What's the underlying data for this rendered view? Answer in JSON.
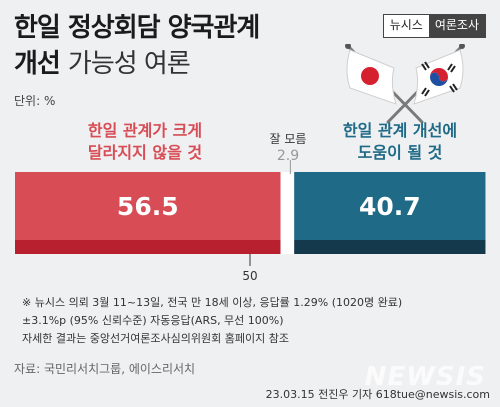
{
  "title": {
    "line1": "한일 정상회담 양국관계",
    "line2_bold": "개선",
    "line2_light": "가능성 여론"
  },
  "badge": {
    "part1": "뉴시스",
    "part2": "여론조사"
  },
  "unit_label": "단위: %",
  "colors": {
    "red": "#d84c55",
    "red_dark": "#b8202f",
    "blue": "#1f6a86",
    "blue_dark": "#14394d"
  },
  "chart_data": {
    "type": "bar",
    "orientation": "horizontal-stacked",
    "categories": [
      "한일 관계가 크게 달라지지 않을 것",
      "잘 모름",
      "한일 관계 개선에 도움이 될 것"
    ],
    "category_lines": {
      "left": [
        "한일 관계가 크게",
        "달라지지 않을 것"
      ],
      "mid": [
        "잘 모름"
      ],
      "right": [
        "한일 관계 개선에",
        "도움이 될 것"
      ]
    },
    "values": [
      56.5,
      2.9,
      40.7
    ],
    "value_labels": [
      "56.5",
      "2.9",
      "40.7"
    ],
    "midline_value": 50,
    "midline_label": "50",
    "xlim": [
      0,
      100
    ]
  },
  "notes": [
    "※ 뉴시스 의뢰 3월 11~13일, 전국 만 18세 이상, 응답률 1.29% (1020명 완료)",
    "±3.1%p (95% 신뢰수준) 자동응답(ARS, 무선 100%)",
    "자세한 결과는 중앙선거여론조사심의위원회 홈페이지 참조"
  ],
  "source": "자료: 국민리서치그룹, 에이스리서치",
  "credit": "23.03.15 전진우 기자 618tue@newsis.com",
  "watermark": "NEWSIS",
  "icons": {
    "flags": "japan-korea-crossed-flags-icon"
  }
}
